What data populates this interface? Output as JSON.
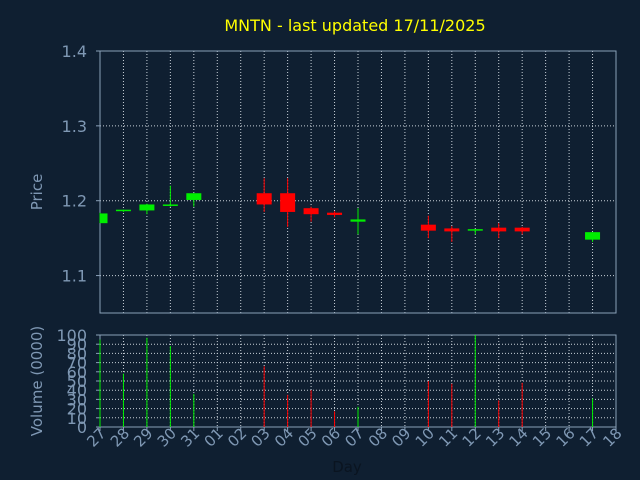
{
  "chart_data": {
    "type": "candlestick",
    "title": "MNTN - last updated 17/11/2025",
    "xlabel": "Day",
    "grid": true,
    "colors": {
      "background": "#0f1f31",
      "axis": "#8aa0b8",
      "label": "#7f98b4",
      "title": "#ffff00",
      "up": "#00ee00",
      "down": "#ff0000",
      "grid": "#c8d0d8"
    },
    "x_ticks": [
      "27",
      "28",
      "29",
      "30",
      "31",
      "01",
      "02",
      "03",
      "04",
      "05",
      "06",
      "07",
      "08",
      "09",
      "10",
      "11",
      "12",
      "13",
      "14",
      "15",
      "16",
      "17",
      "18"
    ],
    "price_panel": {
      "ylabel": "Price",
      "ylim": [
        1.05,
        1.4
      ],
      "y_ticks": [
        "1.1",
        "1.2",
        "1.3",
        "1.4"
      ],
      "y_tick_values": [
        1.1,
        1.2,
        1.3,
        1.4
      ]
    },
    "volume_panel": {
      "ylabel": "Volume (0000)",
      "ylim": [
        0,
        100
      ],
      "y_ticks": [
        "0",
        "10",
        "20",
        "30",
        "40",
        "50",
        "60",
        "70",
        "80",
        "90",
        "100"
      ],
      "y_tick_values": [
        0,
        10,
        20,
        30,
        40,
        50,
        60,
        70,
        80,
        90,
        100
      ]
    },
    "candles": [
      {
        "x": 0,
        "open": 1.17,
        "close": 1.183,
        "high": 1.184,
        "low": 1.17,
        "volume": 95
      },
      {
        "x": 1,
        "open": 1.186,
        "close": 1.188,
        "high": 1.188,
        "low": 1.185,
        "volume": 58
      },
      {
        "x": 2,
        "open": 1.187,
        "close": 1.195,
        "high": 1.196,
        "low": 1.182,
        "volume": 97
      },
      {
        "x": 3,
        "open": 1.193,
        "close": 1.195,
        "high": 1.22,
        "low": 1.192,
        "volume": 88
      },
      {
        "x": 4,
        "open": 1.201,
        "close": 1.21,
        "high": 1.21,
        "low": 1.192,
        "volume": 36
      },
      {
        "x": 7,
        "open": 1.21,
        "close": 1.195,
        "high": 1.23,
        "low": 1.185,
        "volume": 66
      },
      {
        "x": 8,
        "open": 1.21,
        "close": 1.185,
        "high": 1.23,
        "low": 1.165,
        "volume": 35
      },
      {
        "x": 9,
        "open": 1.19,
        "close": 1.182,
        "high": 1.192,
        "low": 1.172,
        "volume": 40
      },
      {
        "x": 10,
        "open": 1.184,
        "close": 1.181,
        "high": 1.186,
        "low": 1.178,
        "volume": 17
      },
      {
        "x": 11,
        "open": 1.172,
        "close": 1.175,
        "high": 1.19,
        "low": 1.155,
        "volume": 22
      },
      {
        "x": 14,
        "open": 1.168,
        "close": 1.16,
        "high": 1.18,
        "low": 1.15,
        "volume": 50
      },
      {
        "x": 15,
        "open": 1.163,
        "close": 1.159,
        "high": 1.166,
        "low": 1.145,
        "volume": 47
      },
      {
        "x": 16,
        "open": 1.16,
        "close": 1.162,
        "high": 1.162,
        "low": 1.155,
        "volume": 100
      },
      {
        "x": 17,
        "open": 1.164,
        "close": 1.159,
        "high": 1.17,
        "low": 1.15,
        "volume": 29
      },
      {
        "x": 18,
        "open": 1.164,
        "close": 1.159,
        "high": 1.165,
        "low": 1.155,
        "volume": 48
      },
      {
        "x": 21,
        "open": 1.148,
        "close": 1.158,
        "high": 1.158,
        "low": 1.145,
        "volume": 31
      }
    ]
  }
}
